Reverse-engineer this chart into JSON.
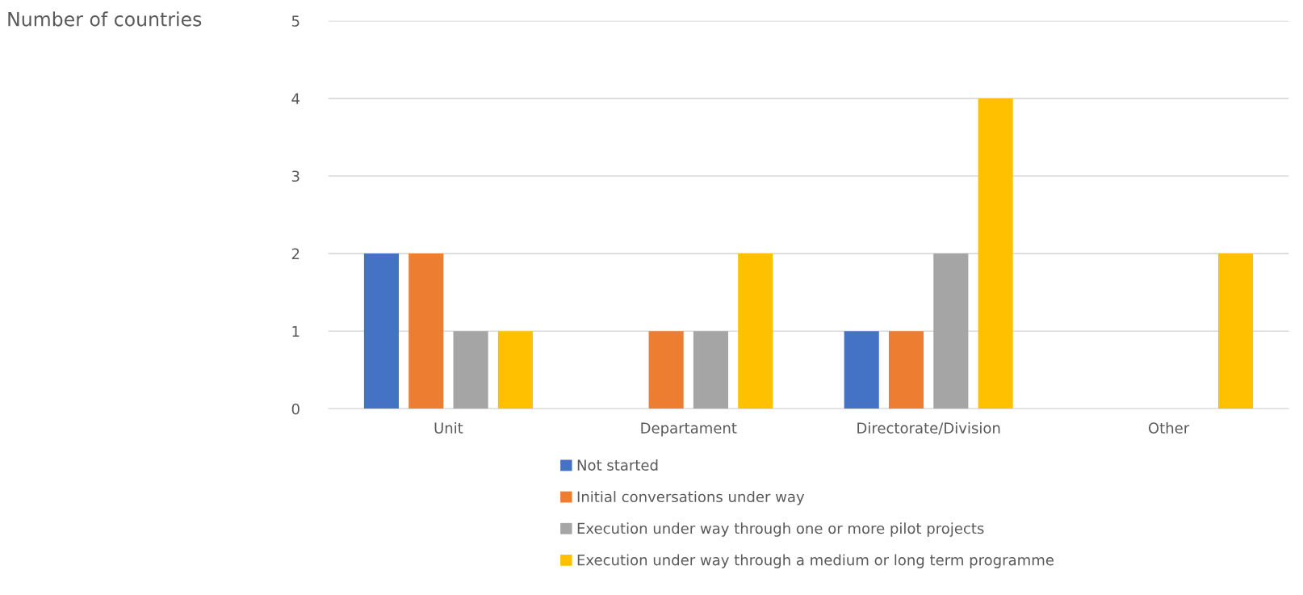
{
  "chart_data": {
    "type": "bar",
    "ylabel": "Number of countries",
    "categories": [
      "Unit",
      "Departament",
      "Directorate/Division",
      "Other"
    ],
    "series": [
      {
        "name": "Not started",
        "color": "#4472c4",
        "values": [
          2,
          0,
          1,
          0
        ]
      },
      {
        "name": "Initial conversations under way",
        "color": "#ed7d31",
        "values": [
          2,
          1,
          1,
          0
        ]
      },
      {
        "name": "Execution under way through one or more pilot projects",
        "color": "#a5a5a5",
        "values": [
          1,
          1,
          2,
          0
        ]
      },
      {
        "name": "Execution under way through a medium or long term programme",
        "color": "#ffc000",
        "values": [
          1,
          2,
          4,
          2
        ]
      }
    ],
    "ylim": [
      0,
      5
    ],
    "yticks": [
      0,
      1,
      2,
      3,
      4,
      5
    ],
    "grid": "y",
    "legend": "bottom"
  }
}
